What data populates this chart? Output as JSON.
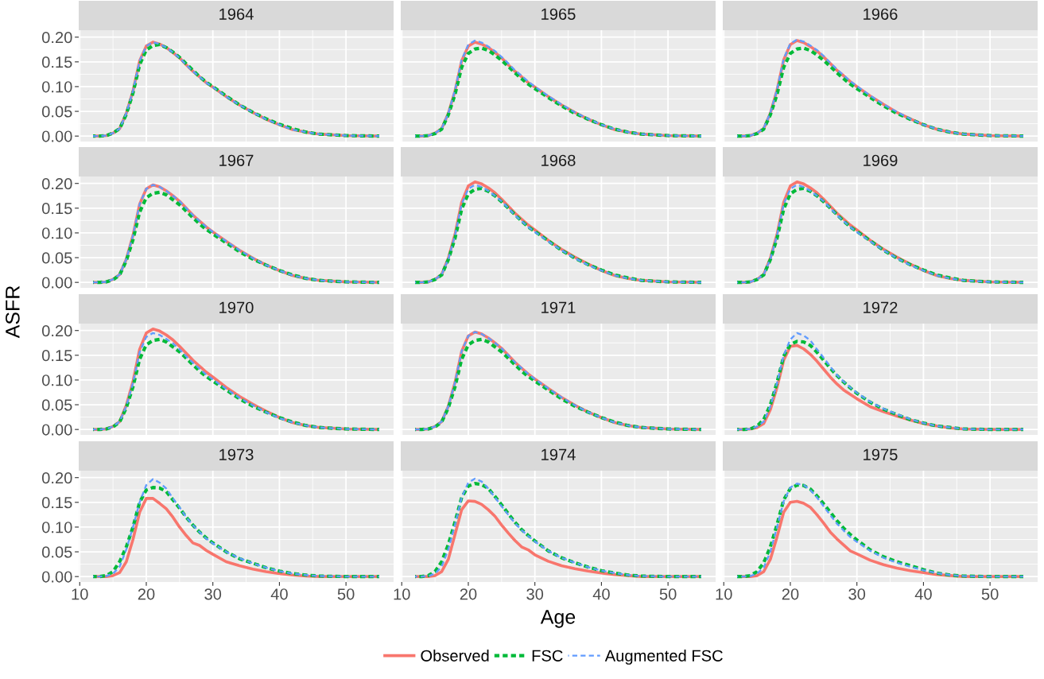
{
  "chart_data": [
    {
      "type": "line",
      "title": "1964",
      "grid": true,
      "tick_labels": "y",
      "xlim": [
        9.85,
        57.15
      ],
      "ylim": [
        -0.011,
        0.214
      ],
      "xticks": [
        10,
        20,
        30,
        40,
        50
      ],
      "yticks": [
        {
          "value": 0,
          "label": "0.00"
        },
        {
          "value": 0.05,
          "label": "0.05"
        },
        {
          "value": 0.1,
          "label": "0.10"
        },
        {
          "value": 0.15,
          "label": "0.15"
        },
        {
          "value": 0.2,
          "label": "0.20"
        }
      ],
      "x": [
        12,
        13,
        14,
        15,
        16,
        17,
        18,
        19,
        20,
        21,
        22,
        23,
        24,
        25,
        26,
        27,
        28,
        29,
        30,
        32,
        34,
        36,
        38,
        40,
        42,
        44,
        46,
        50,
        55
      ],
      "series": [
        {
          "color": "#f8766d",
          "line_style": "solid",
          "values": [
            0,
            0,
            0.001,
            0.006,
            0.015,
            0.046,
            0.091,
            0.152,
            0.182,
            0.19,
            0.186,
            0.179,
            0.169,
            0.158,
            0.144,
            0.131,
            0.12,
            0.108,
            0.099,
            0.08,
            0.063,
            0.048,
            0.034,
            0.023,
            0.013,
            0.008,
            0.004,
            0.001,
            0
          ]
        },
        {
          "color": "#00ba38",
          "line_style": "dashed",
          "values": [
            0,
            0,
            0.001,
            0.006,
            0.015,
            0.044,
            0.087,
            0.144,
            0.174,
            0.183,
            0.185,
            0.179,
            0.17,
            0.159,
            0.146,
            0.133,
            0.12,
            0.109,
            0.1,
            0.081,
            0.063,
            0.048,
            0.035,
            0.024,
            0.015,
            0.008,
            0.004,
            0.001,
            0
          ]
        },
        {
          "color": "#619cff",
          "line_style": "dashed",
          "values": [
            0,
            0,
            0.001,
            0.006,
            0.015,
            0.046,
            0.091,
            0.152,
            0.182,
            0.19,
            0.186,
            0.179,
            0.169,
            0.158,
            0.144,
            0.131,
            0.12,
            0.108,
            0.099,
            0.08,
            0.063,
            0.048,
            0.034,
            0.023,
            0.013,
            0.008,
            0.004,
            0.001,
            0
          ]
        }
      ]
    },
    {
      "type": "line",
      "title": "1965",
      "grid": true,
      "tick_labels": false,
      "xlim": [
        9.85,
        57.15
      ],
      "ylim": [
        -0.011,
        0.214
      ],
      "xticks": [
        10,
        20,
        30,
        40,
        50
      ],
      "yticks": [
        0,
        0.05,
        0.1,
        0.15,
        0.2
      ],
      "x": [
        12,
        13,
        14,
        15,
        16,
        17,
        18,
        19,
        20,
        21,
        22,
        23,
        24,
        25,
        26,
        27,
        28,
        29,
        30,
        32,
        34,
        36,
        38,
        40,
        42,
        44,
        46,
        50,
        55
      ],
      "series": [
        {
          "color": "#f8766d",
          "line_style": "solid",
          "values": [
            0,
            0,
            0.001,
            0.006,
            0.015,
            0.046,
            0.091,
            0.152,
            0.182,
            0.19,
            0.186,
            0.179,
            0.169,
            0.158,
            0.144,
            0.131,
            0.12,
            0.108,
            0.099,
            0.08,
            0.063,
            0.048,
            0.034,
            0.023,
            0.013,
            0.008,
            0.004,
            0.001,
            0
          ]
        },
        {
          "color": "#00ba38",
          "line_style": "dashed",
          "values": [
            0,
            0,
            0.001,
            0.005,
            0.014,
            0.043,
            0.084,
            0.139,
            0.167,
            0.176,
            0.178,
            0.173,
            0.164,
            0.153,
            0.141,
            0.128,
            0.116,
            0.105,
            0.096,
            0.078,
            0.061,
            0.046,
            0.034,
            0.023,
            0.014,
            0.008,
            0.004,
            0.001,
            0
          ]
        },
        {
          "color": "#619cff",
          "line_style": "dashed",
          "values": [
            0,
            0,
            0.001,
            0.006,
            0.015,
            0.046,
            0.093,
            0.154,
            0.185,
            0.193,
            0.189,
            0.181,
            0.172,
            0.16,
            0.147,
            0.133,
            0.122,
            0.11,
            0.1,
            0.081,
            0.064,
            0.048,
            0.035,
            0.023,
            0.014,
            0.008,
            0.004,
            0.001,
            0
          ]
        }
      ]
    },
    {
      "type": "line",
      "title": "1966",
      "grid": true,
      "tick_labels": false,
      "xlim": [
        9.85,
        57.15
      ],
      "ylim": [
        -0.011,
        0.214
      ],
      "xticks": [
        10,
        20,
        30,
        40,
        50
      ],
      "yticks": [
        0,
        0.05,
        0.1,
        0.15,
        0.2
      ],
      "x": [
        12,
        13,
        14,
        15,
        16,
        17,
        18,
        19,
        20,
        21,
        22,
        23,
        24,
        25,
        26,
        27,
        28,
        29,
        30,
        32,
        34,
        36,
        38,
        40,
        42,
        44,
        46,
        50,
        55
      ],
      "series": [
        {
          "color": "#f8766d",
          "line_style": "solid",
          "values": [
            0,
            0,
            0.001,
            0.006,
            0.015,
            0.046,
            0.093,
            0.154,
            0.185,
            0.193,
            0.189,
            0.181,
            0.172,
            0.16,
            0.147,
            0.133,
            0.122,
            0.11,
            0.1,
            0.081,
            0.064,
            0.048,
            0.035,
            0.023,
            0.014,
            0.008,
            0.004,
            0.001,
            0
          ]
        },
        {
          "color": "#00ba38",
          "line_style": "dashed",
          "values": [
            0,
            0,
            0.001,
            0.005,
            0.014,
            0.043,
            0.084,
            0.139,
            0.167,
            0.176,
            0.178,
            0.173,
            0.164,
            0.153,
            0.141,
            0.128,
            0.116,
            0.105,
            0.096,
            0.078,
            0.061,
            0.046,
            0.034,
            0.023,
            0.014,
            0.008,
            0.004,
            0.001,
            0
          ]
        },
        {
          "color": "#619cff",
          "line_style": "dashed",
          "values": [
            0,
            0,
            0.001,
            0.006,
            0.016,
            0.047,
            0.094,
            0.156,
            0.187,
            0.195,
            0.191,
            0.183,
            0.174,
            0.162,
            0.148,
            0.135,
            0.123,
            0.111,
            0.101,
            0.082,
            0.064,
            0.049,
            0.035,
            0.023,
            0.014,
            0.008,
            0.004,
            0.001,
            0
          ]
        }
      ]
    },
    {
      "type": "line",
      "title": "1967",
      "grid": true,
      "tick_labels": "y",
      "xlim": [
        9.85,
        57.15
      ],
      "ylim": [
        -0.011,
        0.214
      ],
      "xticks": [
        10,
        20,
        30,
        40,
        50
      ],
      "yticks": [
        {
          "value": 0,
          "label": "0.00"
        },
        {
          "value": 0.05,
          "label": "0.05"
        },
        {
          "value": 0.1,
          "label": "0.10"
        },
        {
          "value": 0.15,
          "label": "0.15"
        },
        {
          "value": 0.2,
          "label": "0.20"
        }
      ],
      "x": [
        12,
        13,
        14,
        15,
        16,
        17,
        18,
        19,
        20,
        21,
        22,
        23,
        24,
        25,
        26,
        27,
        28,
        29,
        30,
        32,
        34,
        36,
        38,
        40,
        42,
        44,
        46,
        50,
        55
      ],
      "series": [
        {
          "color": "#f8766d",
          "line_style": "solid",
          "values": [
            0,
            0,
            0.001,
            0.006,
            0.016,
            0.047,
            0.095,
            0.158,
            0.189,
            0.197,
            0.193,
            0.185,
            0.175,
            0.164,
            0.15,
            0.136,
            0.124,
            0.112,
            0.102,
            0.083,
            0.065,
            0.049,
            0.035,
            0.024,
            0.014,
            0.008,
            0.004,
            0.001,
            0
          ]
        },
        {
          "color": "#00ba38",
          "line_style": "dashed",
          "values": [
            0,
            0,
            0.001,
            0.005,
            0.015,
            0.044,
            0.086,
            0.142,
            0.171,
            0.18,
            0.182,
            0.177,
            0.167,
            0.157,
            0.144,
            0.131,
            0.118,
            0.107,
            0.098,
            0.08,
            0.062,
            0.047,
            0.035,
            0.024,
            0.015,
            0.008,
            0.004,
            0.001,
            0
          ]
        },
        {
          "color": "#619cff",
          "line_style": "dashed",
          "values": [
            0,
            0,
            0.001,
            0.006,
            0.016,
            0.047,
            0.095,
            0.158,
            0.189,
            0.197,
            0.193,
            0.185,
            0.175,
            0.164,
            0.15,
            0.136,
            0.124,
            0.112,
            0.102,
            0.083,
            0.065,
            0.049,
            0.035,
            0.024,
            0.014,
            0.008,
            0.004,
            0.001,
            0
          ]
        }
      ]
    },
    {
      "type": "line",
      "title": "1968",
      "grid": true,
      "tick_labels": false,
      "xlim": [
        9.85,
        57.15
      ],
      "ylim": [
        -0.011,
        0.214
      ],
      "xticks": [
        10,
        20,
        30,
        40,
        50
      ],
      "yticks": [
        0,
        0.05,
        0.1,
        0.15,
        0.2
      ],
      "x": [
        12,
        13,
        14,
        15,
        16,
        17,
        18,
        19,
        20,
        21,
        22,
        23,
        24,
        25,
        26,
        27,
        28,
        29,
        30,
        32,
        34,
        36,
        38,
        40,
        42,
        44,
        46,
        50,
        55
      ],
      "series": [
        {
          "color": "#f8766d",
          "line_style": "solid",
          "values": [
            0,
            0,
            0.001,
            0.006,
            0.016,
            0.049,
            0.097,
            0.162,
            0.195,
            0.203,
            0.199,
            0.191,
            0.181,
            0.168,
            0.154,
            0.14,
            0.128,
            0.116,
            0.106,
            0.085,
            0.067,
            0.051,
            0.037,
            0.024,
            0.014,
            0.008,
            0.004,
            0.001,
            0
          ]
        },
        {
          "color": "#00ba38",
          "line_style": "dashed",
          "values": [
            0,
            0,
            0.001,
            0.006,
            0.015,
            0.046,
            0.089,
            0.148,
            0.179,
            0.188,
            0.19,
            0.184,
            0.175,
            0.163,
            0.15,
            0.137,
            0.124,
            0.112,
            0.103,
            0.084,
            0.065,
            0.049,
            0.036,
            0.025,
            0.015,
            0.009,
            0.004,
            0.001,
            0
          ]
        },
        {
          "color": "#619cff",
          "line_style": "dashed",
          "values": [
            0,
            0,
            0.001,
            0.006,
            0.016,
            0.047,
            0.095,
            0.158,
            0.189,
            0.197,
            0.193,
            0.185,
            0.175,
            0.164,
            0.15,
            0.136,
            0.124,
            0.112,
            0.102,
            0.083,
            0.065,
            0.049,
            0.035,
            0.024,
            0.014,
            0.008,
            0.004,
            0.001,
            0
          ]
        }
      ]
    },
    {
      "type": "line",
      "title": "1969",
      "grid": true,
      "tick_labels": false,
      "xlim": [
        9.85,
        57.15
      ],
      "ylim": [
        -0.011,
        0.214
      ],
      "xticks": [
        10,
        20,
        30,
        40,
        50
      ],
      "yticks": [
        0,
        0.05,
        0.1,
        0.15,
        0.2
      ],
      "x": [
        12,
        13,
        14,
        15,
        16,
        17,
        18,
        19,
        20,
        21,
        22,
        23,
        24,
        25,
        26,
        27,
        28,
        29,
        30,
        32,
        34,
        36,
        38,
        40,
        42,
        44,
        46,
        50,
        55
      ],
      "series": [
        {
          "color": "#f8766d",
          "line_style": "solid",
          "values": [
            0,
            0,
            0.001,
            0.006,
            0.016,
            0.049,
            0.097,
            0.162,
            0.195,
            0.203,
            0.199,
            0.191,
            0.181,
            0.168,
            0.154,
            0.14,
            0.128,
            0.116,
            0.106,
            0.085,
            0.067,
            0.051,
            0.037,
            0.024,
            0.014,
            0.008,
            0.004,
            0.001,
            0
          ]
        },
        {
          "color": "#00ba38",
          "line_style": "dashed",
          "values": [
            0,
            0,
            0.001,
            0.006,
            0.015,
            0.046,
            0.089,
            0.148,
            0.179,
            0.188,
            0.19,
            0.184,
            0.175,
            0.163,
            0.15,
            0.137,
            0.124,
            0.112,
            0.103,
            0.084,
            0.065,
            0.049,
            0.036,
            0.025,
            0.015,
            0.009,
            0.004,
            0.001,
            0
          ]
        },
        {
          "color": "#619cff",
          "line_style": "dashed",
          "values": [
            0,
            0,
            0.001,
            0.006,
            0.016,
            0.047,
            0.095,
            0.158,
            0.189,
            0.197,
            0.193,
            0.185,
            0.175,
            0.164,
            0.15,
            0.136,
            0.124,
            0.112,
            0.102,
            0.083,
            0.065,
            0.049,
            0.035,
            0.024,
            0.014,
            0.008,
            0.004,
            0.001,
            0
          ]
        }
      ]
    },
    {
      "type": "line",
      "title": "1970",
      "ylabel": "ASFR",
      "grid": true,
      "tick_labels": "y",
      "xlim": [
        9.85,
        57.15
      ],
      "ylim": [
        -0.011,
        0.214
      ],
      "xticks": [
        10,
        20,
        30,
        40,
        50
      ],
      "yticks": [
        {
          "value": 0,
          "label": "0.00"
        },
        {
          "value": 0.05,
          "label": "0.05"
        },
        {
          "value": 0.1,
          "label": "0.10"
        },
        {
          "value": 0.15,
          "label": "0.15"
        },
        {
          "value": 0.2,
          "label": "0.20"
        }
      ],
      "x": [
        12,
        13,
        14,
        15,
        16,
        17,
        18,
        19,
        20,
        21,
        22,
        23,
        24,
        25,
        26,
        27,
        28,
        29,
        30,
        32,
        34,
        36,
        38,
        40,
        42,
        44,
        46,
        50,
        55
      ],
      "series": [
        {
          "color": "#f8766d",
          "line_style": "solid",
          "values": [
            0,
            0,
            0.001,
            0.006,
            0.016,
            0.049,
            0.097,
            0.162,
            0.195,
            0.203,
            0.199,
            0.191,
            0.181,
            0.168,
            0.154,
            0.14,
            0.128,
            0.116,
            0.106,
            0.085,
            0.067,
            0.051,
            0.037,
            0.024,
            0.014,
            0.008,
            0.004,
            0.001,
            0
          ]
        },
        {
          "color": "#00ba38",
          "line_style": "dashed",
          "values": [
            0,
            0,
            0.001,
            0.005,
            0.015,
            0.044,
            0.086,
            0.142,
            0.171,
            0.18,
            0.182,
            0.177,
            0.167,
            0.157,
            0.144,
            0.131,
            0.118,
            0.107,
            0.098,
            0.08,
            0.062,
            0.047,
            0.035,
            0.024,
            0.015,
            0.008,
            0.004,
            0.001,
            0
          ]
        },
        {
          "color": "#619cff",
          "line_style": "dashed",
          "values": [
            0,
            0,
            0.001,
            0.006,
            0.016,
            0.047,
            0.094,
            0.156,
            0.187,
            0.195,
            0.191,
            0.183,
            0.174,
            0.162,
            0.148,
            0.135,
            0.123,
            0.111,
            0.101,
            0.082,
            0.064,
            0.049,
            0.035,
            0.023,
            0.014,
            0.008,
            0.004,
            0.001,
            0
          ]
        }
      ]
    },
    {
      "type": "line",
      "title": "1971",
      "grid": true,
      "tick_labels": false,
      "xlim": [
        9.85,
        57.15
      ],
      "ylim": [
        -0.011,
        0.214
      ],
      "xticks": [
        10,
        20,
        30,
        40,
        50
      ],
      "yticks": [
        0,
        0.05,
        0.1,
        0.15,
        0.2
      ],
      "x": [
        12,
        13,
        14,
        15,
        16,
        17,
        18,
        19,
        20,
        21,
        22,
        23,
        24,
        25,
        26,
        27,
        28,
        29,
        30,
        32,
        34,
        36,
        38,
        40,
        42,
        44,
        46,
        50,
        55
      ],
      "series": [
        {
          "color": "#f8766d",
          "line_style": "solid",
          "values": [
            0,
            0,
            0.001,
            0.006,
            0.016,
            0.047,
            0.095,
            0.158,
            0.189,
            0.197,
            0.193,
            0.185,
            0.175,
            0.164,
            0.15,
            0.136,
            0.124,
            0.112,
            0.102,
            0.083,
            0.065,
            0.049,
            0.035,
            0.024,
            0.014,
            0.008,
            0.004,
            0.001,
            0
          ]
        },
        {
          "color": "#00ba38",
          "line_style": "dashed",
          "values": [
            0,
            0,
            0.001,
            0.005,
            0.015,
            0.044,
            0.086,
            0.142,
            0.171,
            0.18,
            0.182,
            0.177,
            0.167,
            0.157,
            0.144,
            0.131,
            0.118,
            0.107,
            0.098,
            0.08,
            0.062,
            0.047,
            0.035,
            0.024,
            0.015,
            0.008,
            0.004,
            0.001,
            0
          ]
        },
        {
          "color": "#619cff",
          "line_style": "dashed",
          "values": [
            0,
            0,
            0.001,
            0.006,
            0.016,
            0.047,
            0.095,
            0.158,
            0.189,
            0.197,
            0.193,
            0.185,
            0.175,
            0.164,
            0.15,
            0.136,
            0.124,
            0.112,
            0.102,
            0.083,
            0.065,
            0.049,
            0.035,
            0.024,
            0.014,
            0.008,
            0.004,
            0.001,
            0
          ]
        }
      ]
    },
    {
      "type": "line",
      "title": "1972",
      "grid": true,
      "tick_labels": false,
      "xlim": [
        9.85,
        57.15
      ],
      "ylim": [
        -0.011,
        0.214
      ],
      "xticks": [
        10,
        20,
        30,
        40,
        50
      ],
      "yticks": [
        0,
        0.05,
        0.1,
        0.15,
        0.2
      ],
      "x": [
        12,
        13,
        14,
        15,
        16,
        17,
        18,
        19,
        20,
        21,
        22,
        23,
        24,
        25,
        26,
        27,
        28,
        29,
        30,
        32,
        34,
        36,
        38,
        40,
        42,
        44,
        46,
        50,
        55
      ],
      "series": [
        {
          "color": "#f8766d",
          "line_style": "solid",
          "values": [
            0,
            0,
            0.001,
            0.004,
            0.012,
            0.04,
            0.085,
            0.14,
            0.168,
            0.17,
            0.163,
            0.152,
            0.138,
            0.122,
            0.106,
            0.092,
            0.08,
            0.071,
            0.062,
            0.046,
            0.036,
            0.027,
            0.019,
            0.012,
            0.007,
            0.003,
            0.001,
            0,
            0
          ]
        },
        {
          "color": "#00ba38",
          "line_style": "dashed",
          "values": [
            0,
            0,
            0.001,
            0.007,
            0.02,
            0.05,
            0.095,
            0.148,
            0.172,
            0.178,
            0.177,
            0.17,
            0.156,
            0.14,
            0.124,
            0.109,
            0.096,
            0.084,
            0.073,
            0.055,
            0.041,
            0.03,
            0.02,
            0.013,
            0.007,
            0.004,
            0.001,
            0,
            0
          ]
        },
        {
          "color": "#619cff",
          "line_style": "dashed",
          "values": [
            0,
            0,
            0.001,
            0.006,
            0.016,
            0.047,
            0.094,
            0.15,
            0.182,
            0.195,
            0.19,
            0.18,
            0.162,
            0.145,
            0.127,
            0.11,
            0.097,
            0.085,
            0.074,
            0.056,
            0.042,
            0.031,
            0.021,
            0.013,
            0.007,
            0.004,
            0.001,
            0,
            0
          ]
        }
      ]
    },
    {
      "type": "line",
      "title": "1973",
      "grid": true,
      "xlim": [
        9.85,
        57.15
      ],
      "ylim": [
        -0.011,
        0.214
      ],
      "xticks": [
        10,
        20,
        30,
        40,
        50
      ],
      "yticks": [
        {
          "value": 0,
          "label": "0.00"
        },
        {
          "value": 0.05,
          "label": "0.05"
        },
        {
          "value": 0.1,
          "label": "0.10"
        },
        {
          "value": 0.15,
          "label": "0.15"
        },
        {
          "value": 0.2,
          "label": "0.20"
        }
      ],
      "x": [
        12,
        13,
        14,
        15,
        16,
        17,
        18,
        19,
        20,
        21,
        22,
        23,
        24,
        25,
        26,
        27,
        28,
        29,
        30,
        32,
        34,
        36,
        38,
        40,
        42,
        44,
        46,
        50,
        55
      ],
      "series": [
        {
          "color": "#f8766d",
          "line_style": "solid",
          "values": [
            0,
            0,
            0,
            0.002,
            0.008,
            0.03,
            0.075,
            0.13,
            0.158,
            0.158,
            0.148,
            0.137,
            0.12,
            0.1,
            0.083,
            0.068,
            0.063,
            0.053,
            0.045,
            0.03,
            0.022,
            0.015,
            0.01,
            0.006,
            0.003,
            0.001,
            0,
            0,
            0
          ]
        },
        {
          "color": "#00ba38",
          "line_style": "dashed",
          "values": [
            0,
            0,
            0.002,
            0.01,
            0.03,
            0.06,
            0.1,
            0.15,
            0.175,
            0.18,
            0.179,
            0.172,
            0.155,
            0.138,
            0.12,
            0.104,
            0.09,
            0.078,
            0.068,
            0.05,
            0.036,
            0.027,
            0.018,
            0.011,
            0.006,
            0.003,
            0.001,
            0,
            0
          ]
        },
        {
          "color": "#619cff",
          "line_style": "dashed",
          "values": [
            0,
            0,
            0.001,
            0.006,
            0.02,
            0.055,
            0.1,
            0.15,
            0.185,
            0.197,
            0.19,
            0.178,
            0.158,
            0.14,
            0.12,
            0.104,
            0.09,
            0.077,
            0.067,
            0.05,
            0.037,
            0.027,
            0.018,
            0.011,
            0.006,
            0.003,
            0.001,
            0,
            0
          ]
        }
      ]
    },
    {
      "type": "line",
      "title": "1974",
      "xlabel": "Age",
      "grid": true,
      "tick_labels": "x",
      "xlim": [
        9.85,
        57.15
      ],
      "ylim": [
        -0.011,
        0.214
      ],
      "xticks": [
        10,
        20,
        30,
        40,
        50
      ],
      "yticks": [
        0,
        0.05,
        0.1,
        0.15,
        0.2
      ],
      "x": [
        12,
        13,
        14,
        15,
        16,
        17,
        18,
        19,
        20,
        21,
        22,
        23,
        24,
        25,
        26,
        27,
        28,
        29,
        30,
        32,
        34,
        36,
        38,
        40,
        42,
        44,
        46,
        50,
        55
      ],
      "series": [
        {
          "color": "#f8766d",
          "line_style": "solid",
          "values": [
            0,
            0,
            0,
            0.002,
            0.01,
            0.035,
            0.085,
            0.135,
            0.153,
            0.152,
            0.146,
            0.135,
            0.122,
            0.104,
            0.088,
            0.073,
            0.06,
            0.054,
            0.044,
            0.031,
            0.022,
            0.016,
            0.011,
            0.007,
            0.004,
            0.002,
            0,
            0,
            0
          ]
        },
        {
          "color": "#00ba38",
          "line_style": "dashed",
          "values": [
            0,
            0,
            0.002,
            0.01,
            0.03,
            0.065,
            0.11,
            0.16,
            0.183,
            0.188,
            0.186,
            0.178,
            0.162,
            0.145,
            0.127,
            0.11,
            0.095,
            0.083,
            0.072,
            0.052,
            0.038,
            0.028,
            0.019,
            0.012,
            0.007,
            0.003,
            0.001,
            0,
            0
          ]
        },
        {
          "color": "#619cff",
          "line_style": "dashed",
          "values": [
            0,
            0,
            0.001,
            0.006,
            0.02,
            0.055,
            0.105,
            0.16,
            0.19,
            0.198,
            0.192,
            0.178,
            0.16,
            0.142,
            0.125,
            0.108,
            0.094,
            0.082,
            0.071,
            0.052,
            0.038,
            0.028,
            0.019,
            0.012,
            0.007,
            0.003,
            0.001,
            0,
            0
          ]
        }
      ]
    },
    {
      "type": "line",
      "title": "1975",
      "legend": "bottom",
      "grid": true,
      "tick_labels": "x",
      "xlim": [
        9.85,
        57.15
      ],
      "ylim": [
        -0.011,
        0.214
      ],
      "xticks": [
        10,
        20,
        30,
        40,
        50
      ],
      "yticks": [
        0,
        0.05,
        0.1,
        0.15,
        0.2
      ],
      "x": [
        12,
        13,
        14,
        15,
        16,
        17,
        18,
        19,
        20,
        21,
        22,
        23,
        24,
        25,
        26,
        27,
        28,
        29,
        30,
        32,
        34,
        36,
        38,
        40,
        42,
        44,
        46,
        50,
        55
      ],
      "series": [
        {
          "name": "Observed",
          "color": "#f8766d",
          "line_style": "solid",
          "values": [
            0,
            0,
            0,
            0.002,
            0.01,
            0.035,
            0.08,
            0.13,
            0.15,
            0.152,
            0.148,
            0.14,
            0.125,
            0.108,
            0.09,
            0.076,
            0.064,
            0.052,
            0.046,
            0.033,
            0.024,
            0.017,
            0.012,
            0.008,
            0.004,
            0.002,
            0,
            0,
            0
          ]
        },
        {
          "name": "FSC",
          "color": "#00ba38",
          "line_style": "dashed",
          "values": [
            0,
            0,
            0.002,
            0.01,
            0.028,
            0.06,
            0.105,
            0.155,
            0.178,
            0.185,
            0.184,
            0.177,
            0.163,
            0.147,
            0.13,
            0.113,
            0.098,
            0.085,
            0.074,
            0.054,
            0.04,
            0.03,
            0.022,
            0.014,
            0.007,
            0.003,
            0.001,
            0,
            0
          ]
        },
        {
          "name": "Augmented FSC",
          "color": "#619cff",
          "line_style": "dashed",
          "values": [
            0,
            0,
            0.001,
            0.006,
            0.018,
            0.05,
            0.1,
            0.152,
            0.18,
            0.188,
            0.185,
            0.175,
            0.16,
            0.142,
            0.124,
            0.107,
            0.093,
            0.08,
            0.07,
            0.052,
            0.038,
            0.028,
            0.02,
            0.013,
            0.007,
            0.003,
            0.001,
            0,
            0
          ]
        }
      ]
    }
  ]
}
